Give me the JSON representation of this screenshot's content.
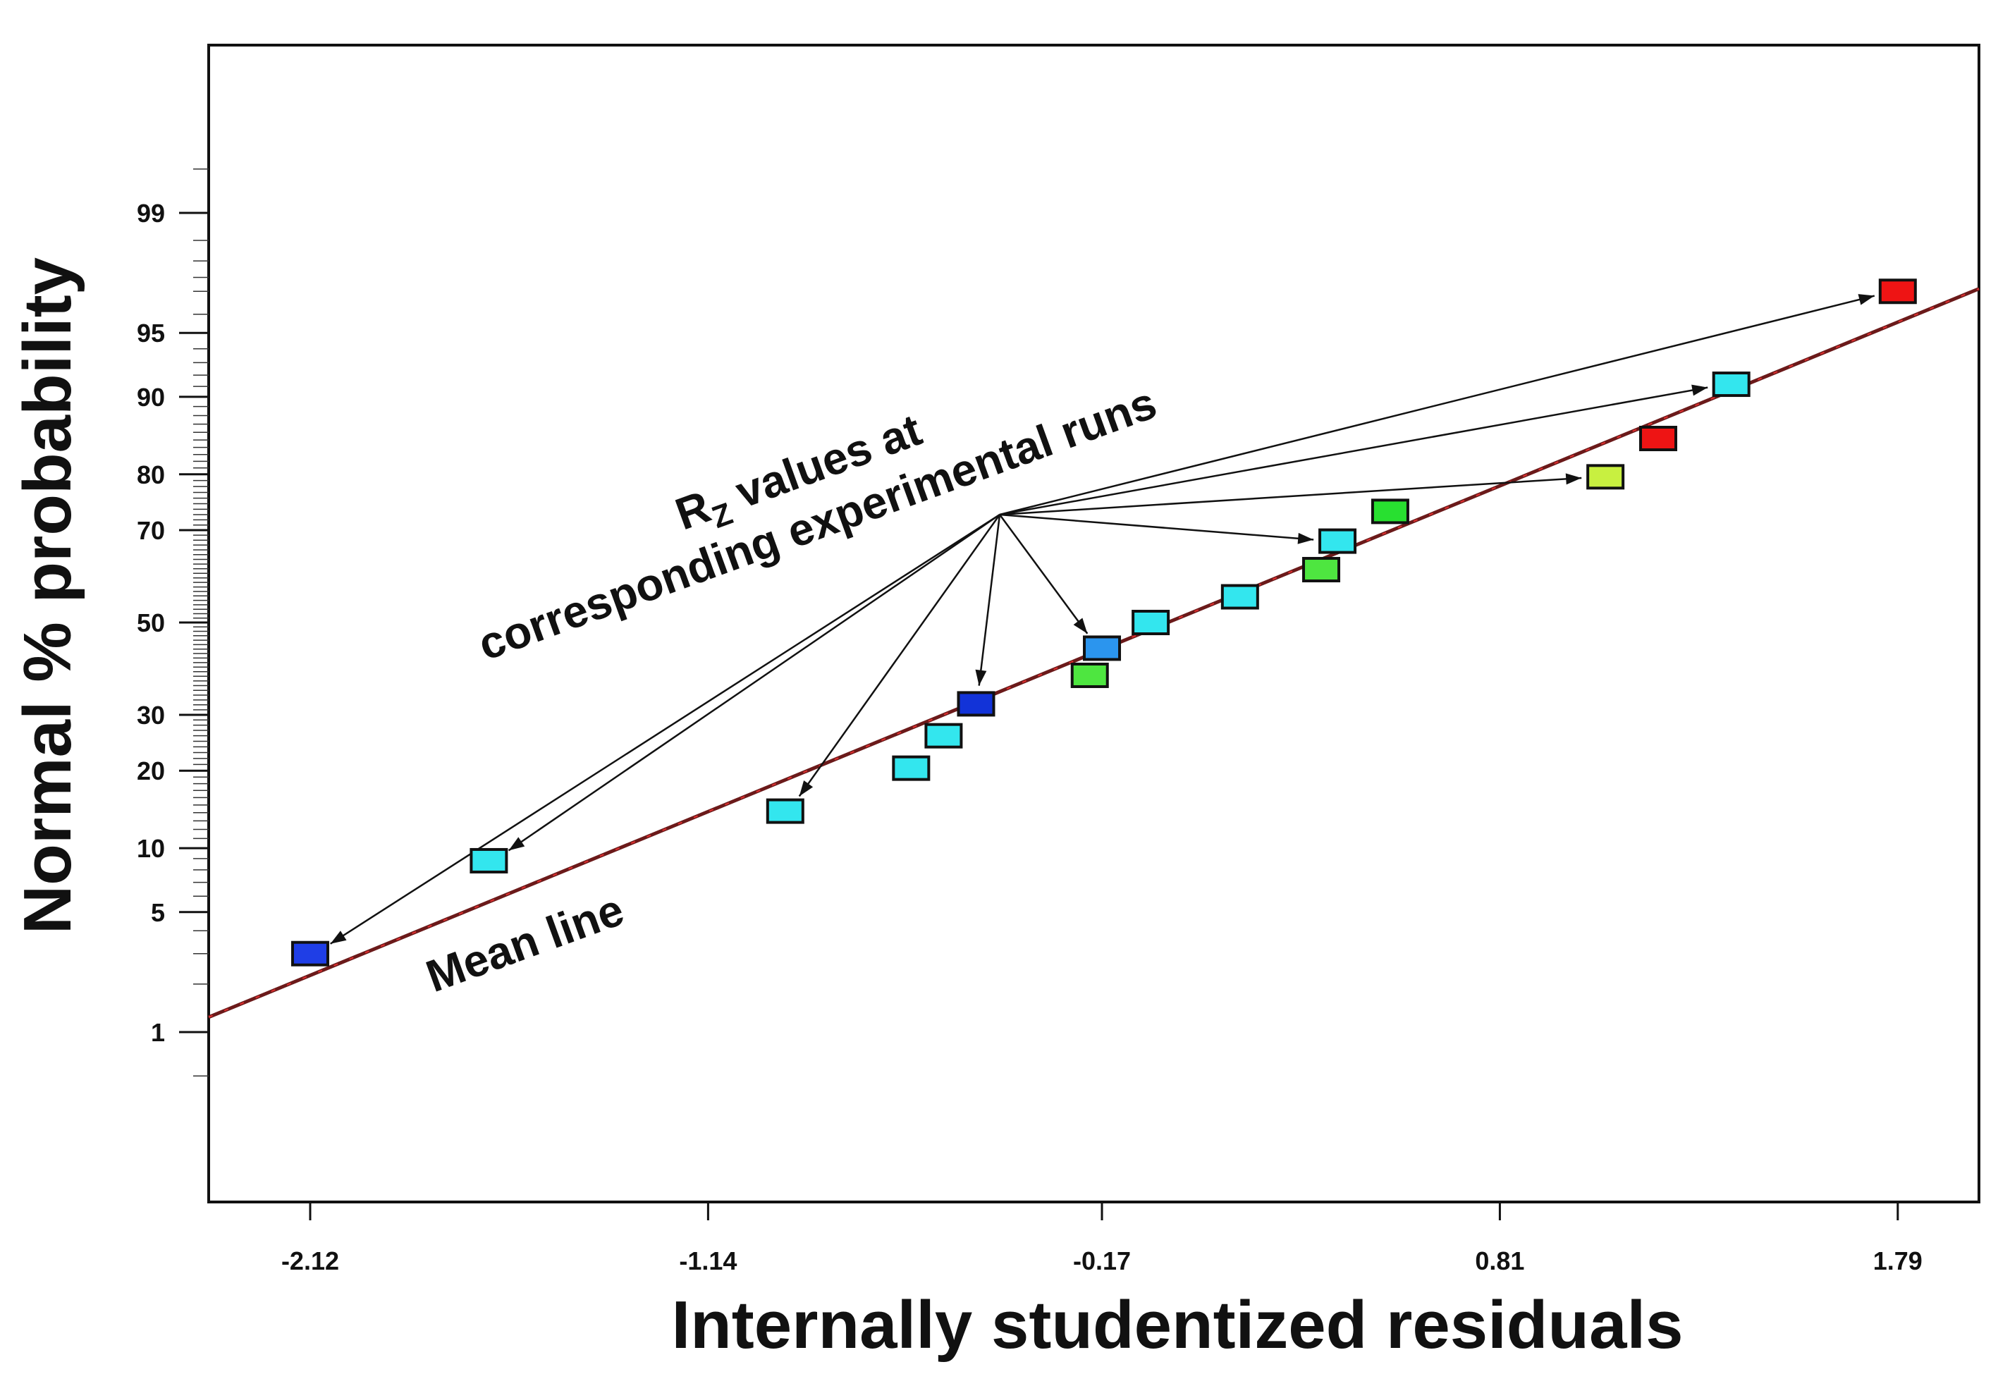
{
  "chart_data": {
    "type": "scatter",
    "title": "",
    "xlabel": "Internally studentized residuals",
    "ylabel": "Normal % probability",
    "xlim": [
      -2.37,
      1.99
    ],
    "x_ticks": [
      -2.12,
      -1.14,
      -0.17,
      0.81,
      1.79
    ],
    "x_tick_labels": [
      "-2.12",
      "-1.14",
      "-0.17",
      "0.81",
      "1.79"
    ],
    "y_scale": "normal-probability",
    "y_ticks": [
      1,
      5,
      10,
      20,
      30,
      50,
      70,
      80,
      90,
      95,
      99
    ],
    "y_tick_labels": [
      "1",
      "5",
      "10",
      "20",
      "30",
      "50",
      "70",
      "80",
      "90",
      "95",
      "99"
    ],
    "mean_line": {
      "label": "Mean line",
      "x": [
        -2.37,
        1.99
      ],
      "y": [
        1.25,
        97.1
      ]
    },
    "annotation": {
      "line1_main": "R",
      "line1_sub": "Z",
      "line1_rest": " values at",
      "line2": "corresponding experimental runs"
    },
    "points": [
      {
        "x": -2.12,
        "y": 3.0,
        "color": "#1f3ee6"
      },
      {
        "x": -1.68,
        "y": 8.8,
        "color": "#33e6ee"
      },
      {
        "x": -0.95,
        "y": 14.2,
        "color": "#33e6ee"
      },
      {
        "x": -0.64,
        "y": 20.4,
        "color": "#33e6ee"
      },
      {
        "x": -0.56,
        "y": 26.0,
        "color": "#33e6ee"
      },
      {
        "x": -0.48,
        "y": 32.2,
        "color": "#1233d8"
      },
      {
        "x": -0.2,
        "y": 38.2,
        "color": "#4ee640"
      },
      {
        "x": -0.17,
        "y": 44.2,
        "color": "#2b95ee"
      },
      {
        "x": -0.05,
        "y": 50.0,
        "color": "#33e6ee"
      },
      {
        "x": 0.17,
        "y": 55.8,
        "color": "#33e6ee"
      },
      {
        "x": 0.37,
        "y": 61.8,
        "color": "#4ee640"
      },
      {
        "x": 0.41,
        "y": 67.8,
        "color": "#33e6ee"
      },
      {
        "x": 0.54,
        "y": 73.6,
        "color": "#28e030"
      },
      {
        "x": 1.07,
        "y": 79.6,
        "color": "#c8f040"
      },
      {
        "x": 1.2,
        "y": 85.2,
        "color": "#ee1414"
      },
      {
        "x": 1.38,
        "y": 91.2,
        "color": "#33e6ee"
      },
      {
        "x": 1.79,
        "y": 97.0,
        "color": "#ee1414"
      }
    ],
    "arrows_to_points": [
      0,
      1,
      2,
      5,
      7,
      11,
      13,
      15,
      16
    ]
  }
}
